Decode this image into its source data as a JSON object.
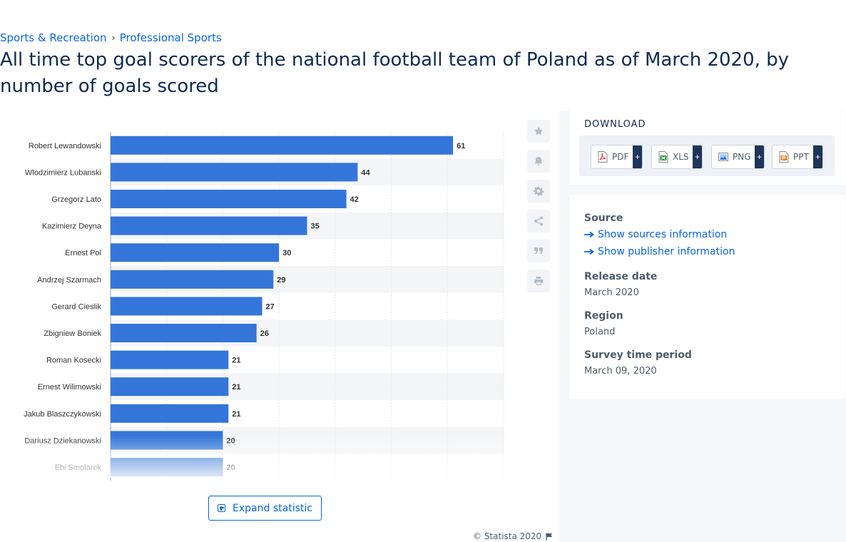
{
  "breadcrumb": {
    "items": [
      "Sports & Recreation",
      "Professional Sports"
    ],
    "separator": "›"
  },
  "page": {
    "title": "All time top goal scorers of the national football team of Poland as of March 2020, by number of goals scored"
  },
  "chart_data": {
    "type": "bar",
    "orientation": "horizontal",
    "categories": [
      "Robert Lewandowski",
      "Wlodzimierz Lubanski",
      "Grzegorz Lato",
      "Kazimierz Deyna",
      "Ernest Pol",
      "Andrzej Szarmach",
      "Gerard Cieslik",
      "Zbigniew Boniek",
      "Roman Kosecki",
      "Ernest Wilimowski",
      "Jakub Blaszczykowski",
      "Dariusz Dziekanowski",
      "Ebi Smolarek"
    ],
    "values": [
      61,
      44,
      42,
      35,
      30,
      29,
      27,
      26,
      21,
      21,
      21,
      20,
      20
    ],
    "xlim": [
      0,
      70
    ],
    "grid": true,
    "bar_color": "#3475d9",
    "data_labels": true
  },
  "tools": {
    "icons": [
      "star-icon",
      "bell-icon",
      "gear-icon",
      "share-icon",
      "quote-icon",
      "print-icon"
    ]
  },
  "expand": {
    "label": "Expand statistic"
  },
  "copyright": {
    "text": "© Statista 2020"
  },
  "download": {
    "title": "DOWNLOAD",
    "buttons": [
      {
        "label": "PDF",
        "plus": "+",
        "color": "#d9342b"
      },
      {
        "label": "XLS",
        "plus": "+",
        "color": "#2e8a3e"
      },
      {
        "label": "PNG",
        "plus": "+",
        "color": "#3475d9"
      },
      {
        "label": "PPT",
        "plus": "+",
        "color": "#e5832a"
      }
    ]
  },
  "meta": {
    "source_heading": "Source",
    "show_sources": "Show sources information",
    "show_publisher": "Show publisher information",
    "release_heading": "Release date",
    "release_value": "March 2020",
    "region_heading": "Region",
    "region_value": "Poland",
    "survey_heading": "Survey time period",
    "survey_value": "March 09, 2020"
  }
}
